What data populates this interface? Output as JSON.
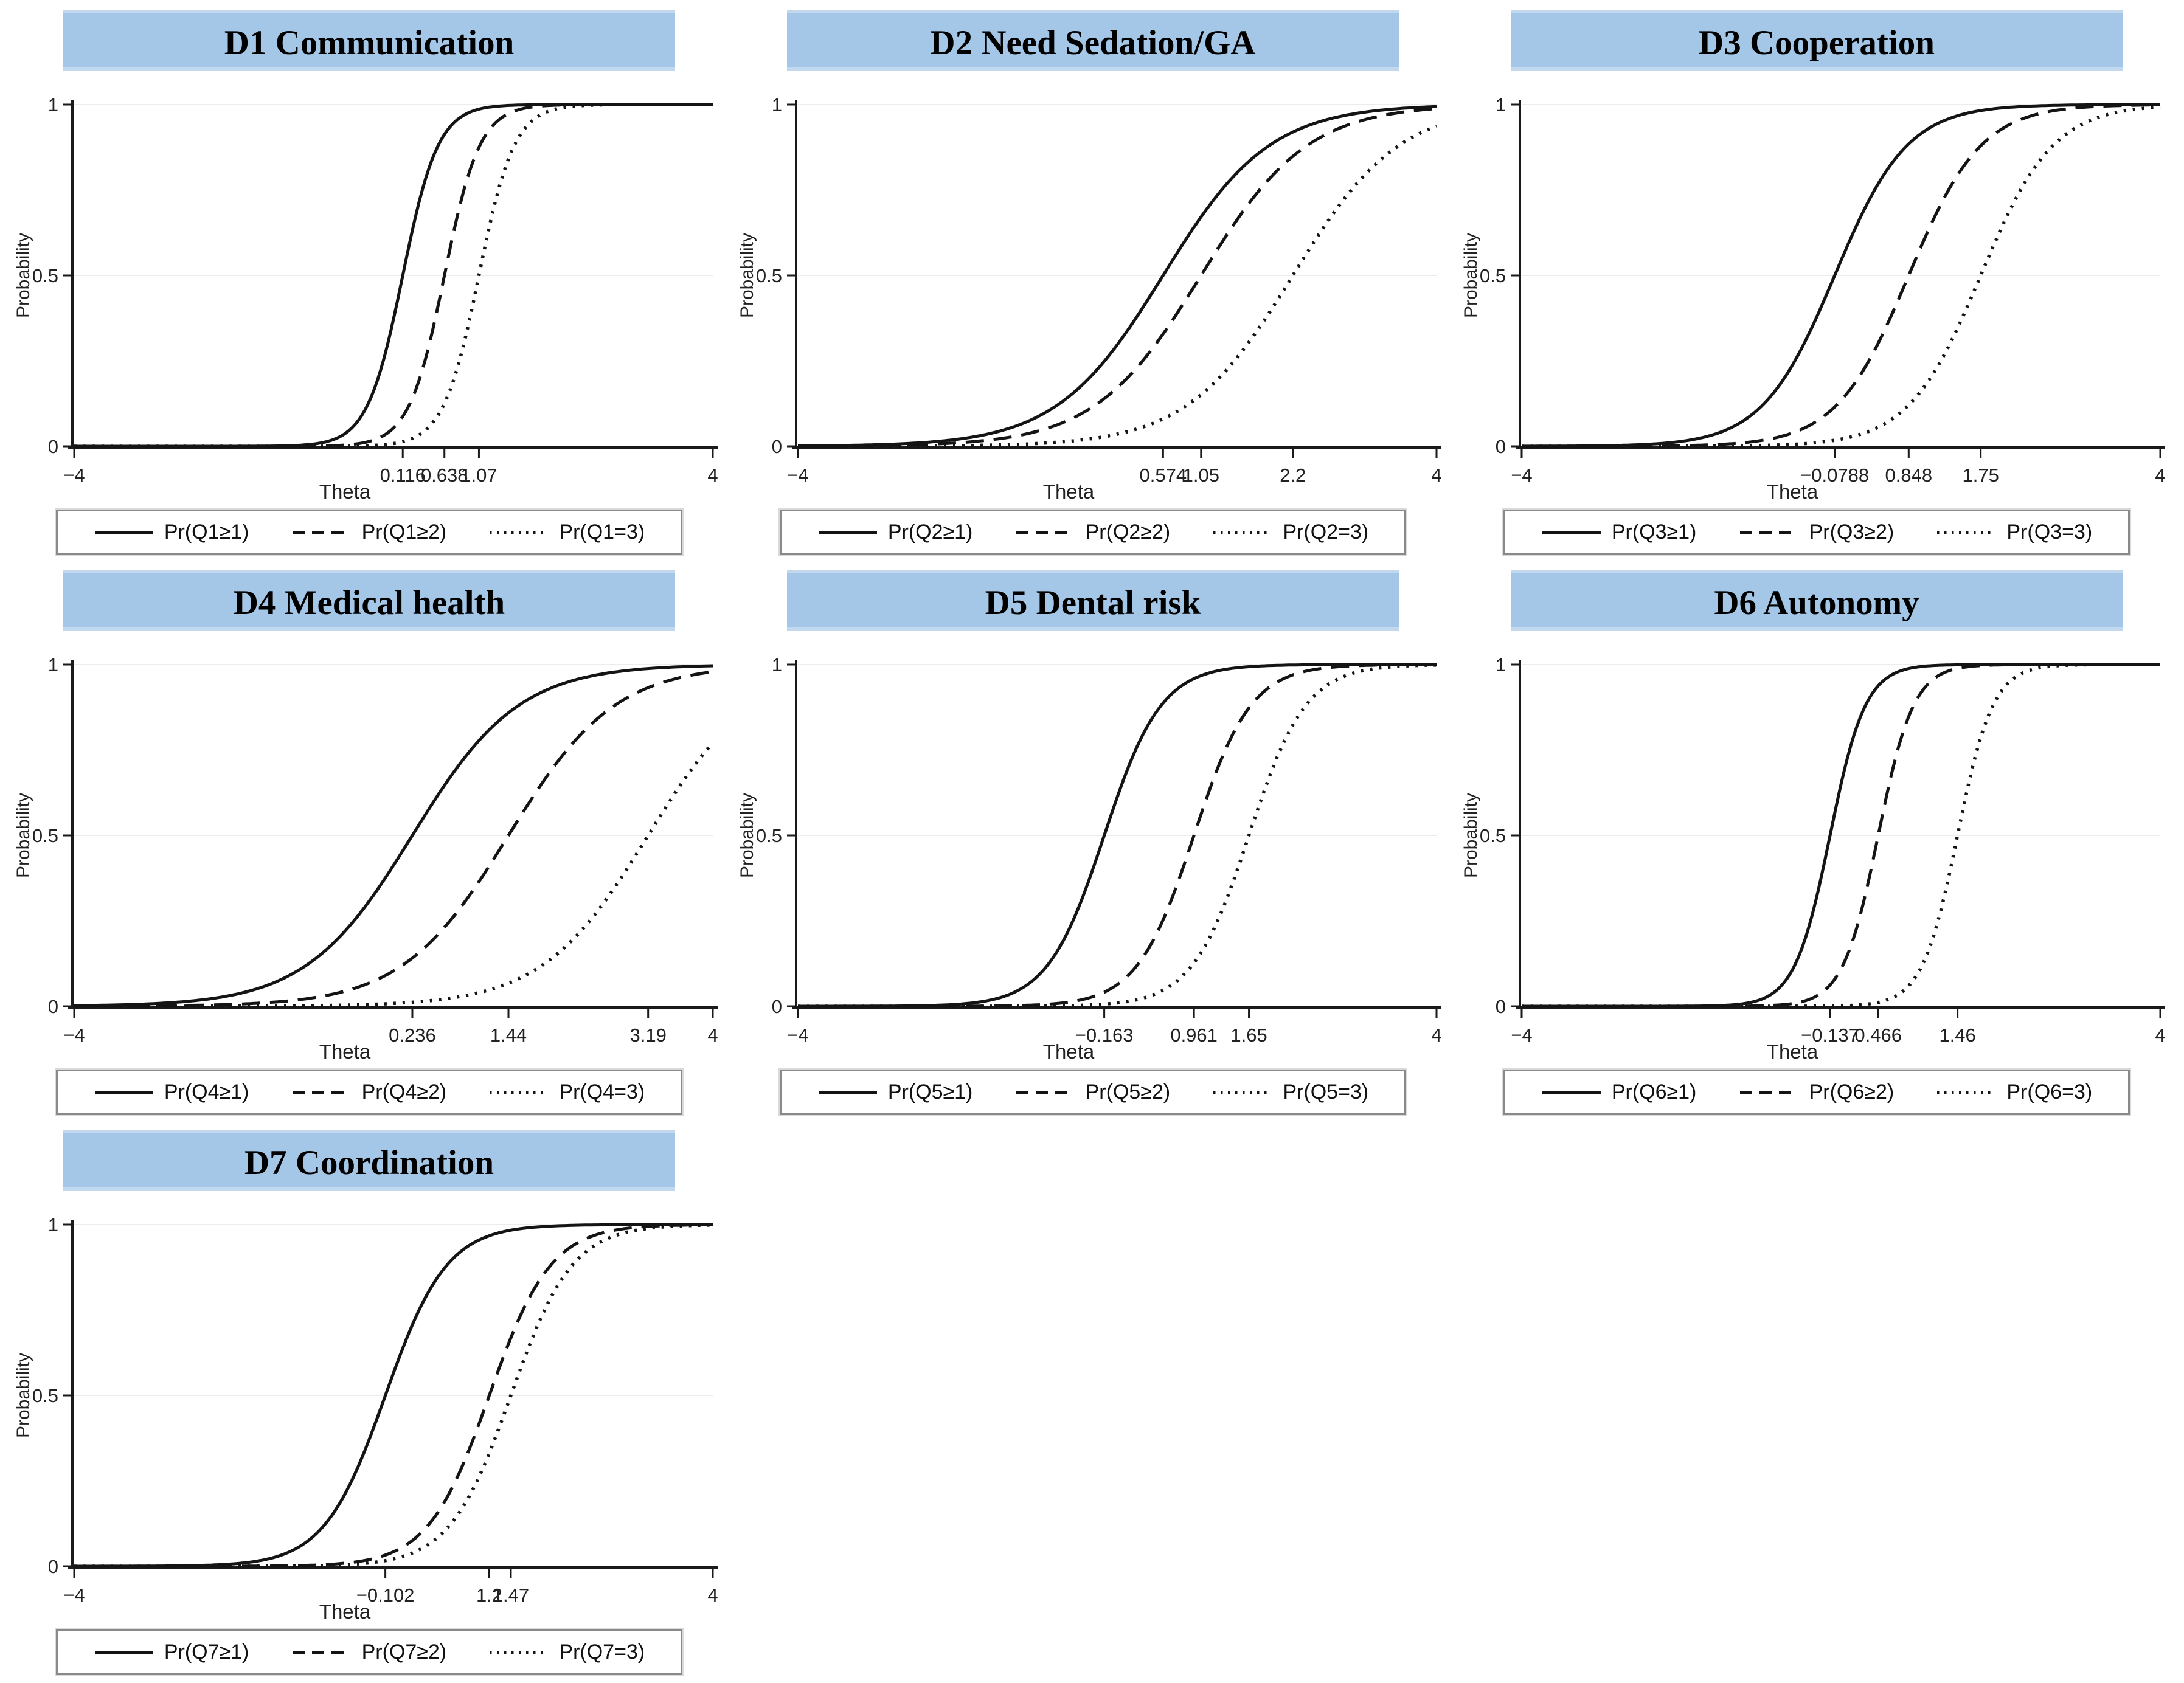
{
  "figure": {
    "ylabel": "Probability",
    "xlabel": "Theta",
    "colors": {
      "header_bg": "#a5c7e7",
      "header_edge": "#c2d8ee",
      "curve": "#141414",
      "axis": "#1a1a1a",
      "grid": "#ececec",
      "tick_text": "#222222",
      "legend_border": "#8a8a8a"
    }
  },
  "chart_data": [
    {
      "id": "D1",
      "type": "line",
      "title": "D1 Communication",
      "xlabel": "Theta",
      "ylabel": "Probability",
      "xlim": [
        -4,
        4
      ],
      "ylim": [
        0,
        1
      ],
      "yticks": [
        {
          "v": 0,
          "label": "0"
        },
        {
          "v": 0.5,
          "label": "0.5"
        },
        {
          "v": 1,
          "label": "1"
        }
      ],
      "xticks": [
        {
          "v": -4,
          "label": "−4"
        },
        {
          "v": 0.116,
          "label": "0.116"
        },
        {
          "v": 0.638,
          "label": "0.638"
        },
        {
          "v": 1.07,
          "label": "1.07"
        },
        {
          "v": 4,
          "label": "4"
        }
      ],
      "model": "logistic: P = 1 / (1 + exp(-a(theta - b)))",
      "series": [
        {
          "name": "Pr(Q1≥1)",
          "style": "solid",
          "discrimination": 4.5,
          "location": 0.116
        },
        {
          "name": "Pr(Q1≥2)",
          "style": "dashed",
          "discrimination": 4.5,
          "location": 0.638
        },
        {
          "name": "Pr(Q1=3)",
          "style": "dotted",
          "discrimination": 4.5,
          "location": 1.07
        }
      ],
      "legend_position": "bottom",
      "grid": "horizontal at 0.5 and 1"
    },
    {
      "id": "D2",
      "type": "line",
      "title": "D2 Need Sedation/GA",
      "xlabel": "Theta",
      "ylabel": "Probability",
      "xlim": [
        -4,
        4
      ],
      "ylim": [
        0,
        1
      ],
      "yticks": [
        {
          "v": 0,
          "label": "0"
        },
        {
          "v": 0.5,
          "label": "0.5"
        },
        {
          "v": 1,
          "label": "1"
        }
      ],
      "xticks": [
        {
          "v": -4,
          "label": "−4"
        },
        {
          "v": 0.574,
          "label": "0.574"
        },
        {
          "v": 1.05,
          "label": "1.05"
        },
        {
          "v": 2.2,
          "label": "2.2"
        },
        {
          "v": 4,
          "label": "4"
        }
      ],
      "model": "logistic: P = 1 / (1 + exp(-a(theta - b)))",
      "series": [
        {
          "name": "Pr(Q2≥1)",
          "style": "solid",
          "discrimination": 1.5,
          "location": 0.574
        },
        {
          "name": "Pr(Q2≥2)",
          "style": "dashed",
          "discrimination": 1.5,
          "location": 1.05
        },
        {
          "name": "Pr(Q2=3)",
          "style": "dotted",
          "discrimination": 1.5,
          "location": 2.2
        }
      ],
      "legend_position": "bottom",
      "grid": "horizontal at 0.5 and 1"
    },
    {
      "id": "D3",
      "type": "line",
      "title": "D3 Cooperation",
      "xlabel": "Theta",
      "ylabel": "Probability",
      "xlim": [
        -4,
        4
      ],
      "ylim": [
        0,
        1
      ],
      "yticks": [
        {
          "v": 0,
          "label": "0"
        },
        {
          "v": 0.5,
          "label": "0.5"
        },
        {
          "v": 1,
          "label": "1"
        }
      ],
      "xticks": [
        {
          "v": -4,
          "label": "−4"
        },
        {
          "v": -0.0788,
          "label": "−0.0788"
        },
        {
          "v": 0.848,
          "label": "0.848"
        },
        {
          "v": 1.75,
          "label": "1.75"
        },
        {
          "v": 4,
          "label": "4"
        }
      ],
      "model": "logistic: P = 1 / (1 + exp(-a(theta - b)))",
      "series": [
        {
          "name": "Pr(Q3≥1)",
          "style": "solid",
          "discrimination": 2.2,
          "location": -0.0788
        },
        {
          "name": "Pr(Q3≥2)",
          "style": "dashed",
          "discrimination": 2.2,
          "location": 0.848
        },
        {
          "name": "Pr(Q3=3)",
          "style": "dotted",
          "discrimination": 2.2,
          "location": 1.75
        }
      ],
      "legend_position": "bottom",
      "grid": "horizontal at 0.5 and 1"
    },
    {
      "id": "D4",
      "type": "line",
      "title": "D4 Medical health",
      "xlabel": "Theta",
      "ylabel": "Probability",
      "xlim": [
        -4,
        4
      ],
      "ylim": [
        0,
        1
      ],
      "yticks": [
        {
          "v": 0,
          "label": "0"
        },
        {
          "v": 0.5,
          "label": "0.5"
        },
        {
          "v": 1,
          "label": "1"
        }
      ],
      "xticks": [
        {
          "v": -4,
          "label": "−4"
        },
        {
          "v": 0.236,
          "label": "0.236"
        },
        {
          "v": 1.44,
          "label": "1.44"
        },
        {
          "v": 3.19,
          "label": "3.19"
        },
        {
          "v": 4,
          "label": "4"
        }
      ],
      "model": "logistic: P = 1 / (1 + exp(-a(theta - b)))",
      "series": [
        {
          "name": "Pr(Q4≥1)",
          "style": "solid",
          "discrimination": 1.5,
          "location": 0.236
        },
        {
          "name": "Pr(Q4≥2)",
          "style": "dashed",
          "discrimination": 1.5,
          "location": 1.44
        },
        {
          "name": "Pr(Q4=3)",
          "style": "dotted",
          "discrimination": 1.5,
          "location": 3.19
        }
      ],
      "legend_position": "bottom",
      "grid": "horizontal at 0.5 and 1"
    },
    {
      "id": "D5",
      "type": "line",
      "title": "D5 Dental risk",
      "xlabel": "Theta",
      "ylabel": "Probability",
      "xlim": [
        -4,
        4
      ],
      "ylim": [
        0,
        1
      ],
      "yticks": [
        {
          "v": 0,
          "label": "0"
        },
        {
          "v": 0.5,
          "label": "0.5"
        },
        {
          "v": 1,
          "label": "1"
        }
      ],
      "xticks": [
        {
          "v": -4,
          "label": "−4"
        },
        {
          "v": -0.163,
          "label": "−0.163"
        },
        {
          "v": 0.961,
          "label": "0.961"
        },
        {
          "v": 1.65,
          "label": "1.65"
        },
        {
          "v": 4,
          "label": "4"
        }
      ],
      "model": "logistic: P = 1 / (1 + exp(-a(theta - b)))",
      "series": [
        {
          "name": "Pr(Q5≥1)",
          "style": "solid",
          "discrimination": 2.8,
          "location": -0.163
        },
        {
          "name": "Pr(Q5≥2)",
          "style": "dashed",
          "discrimination": 2.8,
          "location": 0.961
        },
        {
          "name": "Pr(Q5=3)",
          "style": "dotted",
          "discrimination": 2.8,
          "location": 1.65
        }
      ],
      "legend_position": "bottom",
      "grid": "horizontal at 0.5 and 1"
    },
    {
      "id": "D6",
      "type": "line",
      "title": "D6 Autonomy",
      "xlabel": "Theta",
      "ylabel": "Probability",
      "xlim": [
        -4,
        4
      ],
      "ylim": [
        0,
        1
      ],
      "yticks": [
        {
          "v": 0,
          "label": "0"
        },
        {
          "v": 0.5,
          "label": "0.5"
        },
        {
          "v": 1,
          "label": "1"
        }
      ],
      "xticks": [
        {
          "v": -4,
          "label": "−4"
        },
        {
          "v": -0.137,
          "label": "−0.137"
        },
        {
          "v": 0.466,
          "label": "0.466"
        },
        {
          "v": 1.46,
          "label": "1.46"
        },
        {
          "v": 4,
          "label": "4"
        }
      ],
      "model": "logistic: P = 1 / (1 + exp(-a(theta - b)))",
      "series": [
        {
          "name": "Pr(Q6≥1)",
          "style": "solid",
          "discrimination": 4.5,
          "location": -0.137
        },
        {
          "name": "Pr(Q6≥2)",
          "style": "dashed",
          "discrimination": 4.5,
          "location": 0.466
        },
        {
          "name": "Pr(Q6=3)",
          "style": "dotted",
          "discrimination": 4.5,
          "location": 1.46
        }
      ],
      "legend_position": "bottom",
      "grid": "horizontal at 0.5 and 1"
    },
    {
      "id": "D7",
      "type": "line",
      "title": "D7 Coordination",
      "xlabel": "Theta",
      "ylabel": "Probability",
      "xlim": [
        -4,
        4
      ],
      "ylim": [
        0,
        1
      ],
      "yticks": [
        {
          "v": 0,
          "label": "0"
        },
        {
          "v": 0.5,
          "label": "0.5"
        },
        {
          "v": 1,
          "label": "1"
        }
      ],
      "xticks": [
        {
          "v": -4,
          "label": "−4"
        },
        {
          "v": -0.102,
          "label": "−0.102"
        },
        {
          "v": 1.2,
          "label": "1.2"
        },
        {
          "v": 1.47,
          "label": "1.47"
        },
        {
          "v": 4,
          "label": "4"
        }
      ],
      "model": "logistic: P = 1 / (1 + exp(-a(theta - b)))",
      "series": [
        {
          "name": "Pr(Q7≥1)",
          "style": "solid",
          "discrimination": 2.6,
          "location": -0.102
        },
        {
          "name": "Pr(Q7≥2)",
          "style": "dashed",
          "discrimination": 2.6,
          "location": 1.2
        },
        {
          "name": "Pr(Q7=3)",
          "style": "dotted",
          "discrimination": 2.6,
          "location": 1.47
        }
      ],
      "legend_position": "bottom",
      "grid": "horizontal at 0.5 and 1"
    }
  ]
}
